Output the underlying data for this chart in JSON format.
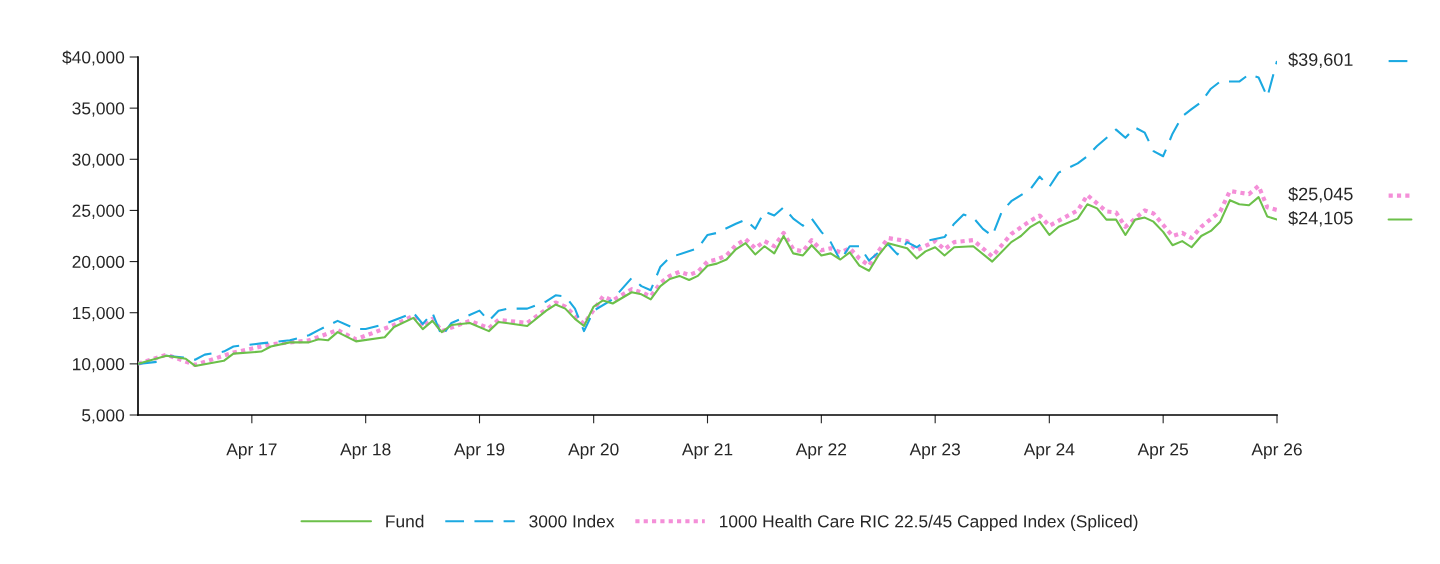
{
  "chart_data": {
    "type": "line",
    "xlim": [
      "2016-04",
      "2026-04"
    ],
    "xticks": [
      {
        "value": "2017-04",
        "label": "Apr 17"
      },
      {
        "value": "2018-04",
        "label": "Apr 18"
      },
      {
        "value": "2019-04",
        "label": "Apr 19"
      },
      {
        "value": "2020-04",
        "label": "Apr 20"
      },
      {
        "value": "2021-04",
        "label": "Apr 21"
      },
      {
        "value": "2022-04",
        "label": "Apr 22"
      },
      {
        "value": "2023-04",
        "label": "Apr 23"
      },
      {
        "value": "2024-04",
        "label": "Apr 24"
      },
      {
        "value": "2025-04",
        "label": "Apr 25"
      },
      {
        "value": "2026-04",
        "label": "Apr 26"
      }
    ],
    "ylim": [
      5000,
      40000
    ],
    "yticks": [
      {
        "value": 5000,
        "label": "5,000"
      },
      {
        "value": 10000,
        "label": "10,000"
      },
      {
        "value": 15000,
        "label": "15,000"
      },
      {
        "value": 20000,
        "label": "20,000"
      },
      {
        "value": 25000,
        "label": "25,000"
      },
      {
        "value": 30000,
        "label": "30,000"
      },
      {
        "value": 35000,
        "label": "35,000"
      },
      {
        "value": 40000,
        "label": "$40,000"
      }
    ],
    "grid": false,
    "legend": "bottom",
    "series": [
      {
        "name": "Fund",
        "color": "#6cc04a",
        "line_style": "solid",
        "x": [
          "2016-04",
          "2016-07",
          "2016-09",
          "2016-10",
          "2017-01",
          "2017-02",
          "2017-05",
          "2017-06",
          "2017-08",
          "2017-10",
          "2017-11",
          "2017-12",
          "2018-01",
          "2018-03",
          "2018-06",
          "2018-07",
          "2018-09",
          "2018-10",
          "2018-11",
          "2018-12",
          "2019-01",
          "2019-03",
          "2019-05",
          "2019-06",
          "2019-09",
          "2019-11",
          "2019-12",
          "2020-01",
          "2020-02",
          "2020-03",
          "2020-04",
          "2020-05",
          "2020-06",
          "2020-08",
          "2020-09",
          "2020-10",
          "2020-11",
          "2020-12",
          "2021-01",
          "2021-02",
          "2021-03",
          "2021-04",
          "2021-05",
          "2021-06",
          "2021-07",
          "2021-08",
          "2021-09",
          "2021-10",
          "2021-11",
          "2021-12",
          "2022-01",
          "2022-02",
          "2022-03",
          "2022-04",
          "2022-05",
          "2022-06",
          "2022-07",
          "2022-08",
          "2022-09",
          "2022-10",
          "2022-11",
          "2023-01",
          "2023-02",
          "2023-03",
          "2023-04",
          "2023-05",
          "2023-06",
          "2023-08",
          "2023-10",
          "2023-12",
          "2024-01",
          "2024-02",
          "2024-03",
          "2024-04",
          "2024-05",
          "2024-07",
          "2024-08",
          "2024-09",
          "2024-10",
          "2024-11",
          "2024-12",
          "2025-01",
          "2025-02",
          "2025-03",
          "2025-04",
          "2025-05",
          "2025-06",
          "2025-07",
          "2025-08",
          "2025-09",
          "2025-10",
          "2025-11",
          "2025-12",
          "2026-01",
          "2026-02",
          "2026-03",
          "2026-04"
        ],
        "values": [
          10000,
          10800,
          10500,
          9800,
          10300,
          11000,
          11200,
          11700,
          12100,
          12100,
          12400,
          12300,
          13100,
          12200,
          12600,
          13600,
          14500,
          13400,
          14200,
          13100,
          13800,
          14000,
          13200,
          14100,
          13700,
          15200,
          15800,
          15400,
          14400,
          13700,
          15600,
          16200,
          15900,
          17000,
          16800,
          16300,
          17600,
          18300,
          18600,
          18200,
          18600,
          19600,
          19800,
          20200,
          21200,
          21800,
          20700,
          21500,
          20800,
          22500,
          20800,
          20600,
          21600,
          20600,
          20800,
          20200,
          20900,
          19600,
          19100,
          20600,
          21800,
          21300,
          20300,
          21000,
          21400,
          20600,
          21400,
          21500,
          20000,
          21900,
          22500,
          23400,
          23900,
          22600,
          23400,
          24200,
          25600,
          25200,
          24100,
          24100,
          22600,
          24100,
          24300,
          23900,
          22900,
          21600,
          22000,
          21400,
          22500,
          23000,
          23900,
          26000,
          25600,
          25500,
          26300,
          24400,
          24105
        ]
      },
      {
        "name": "3000 Index",
        "color": "#1ba9e1",
        "line_style": "dashed",
        "x": [
          "2016-04",
          "2016-06",
          "2016-07",
          "2016-09",
          "2016-10",
          "2016-11",
          "2017-01",
          "2017-02",
          "2017-05",
          "2017-08",
          "2017-10",
          "2017-11",
          "2018-01",
          "2018-03",
          "2018-04",
          "2018-06",
          "2018-09",
          "2018-10",
          "2018-11",
          "2018-12",
          "2019-01",
          "2019-02",
          "2019-04",
          "2019-05",
          "2019-06",
          "2019-07",
          "2019-09",
          "2019-11",
          "2019-12",
          "2020-01",
          "2020-02",
          "2020-03",
          "2020-04",
          "2020-06",
          "2020-08",
          "2020-09",
          "2020-10",
          "2020-11",
          "2020-12",
          "2021-03",
          "2021-04",
          "2021-05",
          "2021-07",
          "2021-08",
          "2021-09",
          "2021-10",
          "2021-11",
          "2021-12",
          "2022-01",
          "2022-02",
          "2022-03",
          "2022-04",
          "2022-05",
          "2022-06",
          "2022-07",
          "2022-08",
          "2022-09",
          "2022-11",
          "2022-12",
          "2023-01",
          "2023-02",
          "2023-03",
          "2023-05",
          "2023-06",
          "2023-07",
          "2023-08",
          "2023-09",
          "2023-10",
          "2023-11",
          "2023-12",
          "2024-02",
          "2024-03",
          "2024-04",
          "2024-05",
          "2024-07",
          "2024-08",
          "2024-09",
          "2024-11",
          "2024-12",
          "2025-01",
          "2025-02",
          "2025-03",
          "2025-04",
          "2025-05",
          "2025-06",
          "2025-07",
          "2025-08",
          "2025-09",
          "2025-10",
          "2025-12",
          "2026-01",
          "2026-02",
          "2026-03",
          "2026-04"
        ],
        "values": [
          10000,
          10200,
          10800,
          10600,
          10400,
          10900,
          11200,
          11700,
          12000,
          12300,
          12800,
          13300,
          14200,
          13400,
          13400,
          13900,
          15000,
          13900,
          15000,
          12700,
          14000,
          14400,
          15200,
          14200,
          15200,
          15400,
          15400,
          16100,
          16700,
          16600,
          15400,
          13200,
          15200,
          16300,
          18400,
          17600,
          17200,
          19500,
          20400,
          21300,
          22600,
          22800,
          23700,
          24100,
          23200,
          24900,
          24500,
          25300,
          24200,
          23500,
          24200,
          22900,
          21900,
          20100,
          21500,
          21500,
          20100,
          21700,
          20700,
          21900,
          21400,
          22000,
          22400,
          23700,
          24600,
          24300,
          23200,
          22500,
          24900,
          25900,
          27100,
          28300,
          27300,
          28700,
          29600,
          30300,
          31300,
          32900,
          32100,
          33100,
          32600,
          30800,
          30300,
          32500,
          34200,
          34900,
          35600,
          36900,
          37600,
          37600,
          38300,
          38000,
          36100,
          39601
        ]
      },
      {
        "name": "1000 Health Care RIC 22.5/45 Capped Index (Spliced)",
        "color": "#f48fd8",
        "line_style": "dotted",
        "x": [
          "2016-04",
          "2016-07",
          "2016-10",
          "2017-02",
          "2017-06",
          "2017-10",
          "2018-01",
          "2018-03",
          "2018-07",
          "2018-09",
          "2018-10",
          "2018-11",
          "2018-12",
          "2019-03",
          "2019-05",
          "2019-06",
          "2019-09",
          "2019-12",
          "2020-01",
          "2020-03",
          "2020-05",
          "2020-06",
          "2020-08",
          "2020-09",
          "2020-10",
          "2020-11",
          "2020-12",
          "2021-01",
          "2021-02",
          "2021-03",
          "2021-04",
          "2021-05",
          "2021-06",
          "2021-07",
          "2021-08",
          "2021-09",
          "2021-10",
          "2021-11",
          "2021-12",
          "2022-01",
          "2022-02",
          "2022-03",
          "2022-04",
          "2022-05",
          "2022-06",
          "2022-07",
          "2022-08",
          "2022-09",
          "2022-10",
          "2022-11",
          "2023-01",
          "2023-02",
          "2023-04",
          "2023-05",
          "2023-06",
          "2023-08",
          "2023-10",
          "2023-12",
          "2024-02",
          "2024-03",
          "2024-04",
          "2024-07",
          "2024-08",
          "2024-10",
          "2024-11",
          "2024-12",
          "2025-02",
          "2025-03",
          "2025-05",
          "2025-06",
          "2025-07",
          "2025-08",
          "2025-10",
          "2025-11",
          "2026-01",
          "2026-02",
          "2026-03",
          "2026-04"
        ],
        "values": [
          10000,
          10900,
          9900,
          11100,
          11900,
          12300,
          13300,
          12400,
          13800,
          14700,
          13600,
          14400,
          13200,
          14200,
          13500,
          14300,
          14000,
          16000,
          15600,
          13900,
          16600,
          16200,
          17300,
          17000,
          16600,
          17900,
          18600,
          19000,
          18700,
          19000,
          20000,
          20200,
          20600,
          21600,
          22200,
          21300,
          22000,
          21500,
          22800,
          21200,
          21000,
          22100,
          21100,
          21300,
          20900,
          21300,
          20300,
          19600,
          21000,
          22300,
          22000,
          21100,
          22000,
          21200,
          21900,
          22100,
          20500,
          22700,
          24000,
          24500,
          23500,
          25000,
          26500,
          24900,
          24800,
          23400,
          25000,
          24700,
          22500,
          22800,
          22300,
          23400,
          24900,
          26900,
          26600,
          27400,
          25300,
          25045
        ]
      }
    ],
    "annotations": [
      {
        "text": "$39,601",
        "x": "2026-04",
        "y": 39601
      },
      {
        "text": "$25,045",
        "x": "2026-04",
        "y": 25045
      },
      {
        "text": "$24,105",
        "x": "2026-04",
        "y": 24105
      }
    ]
  }
}
